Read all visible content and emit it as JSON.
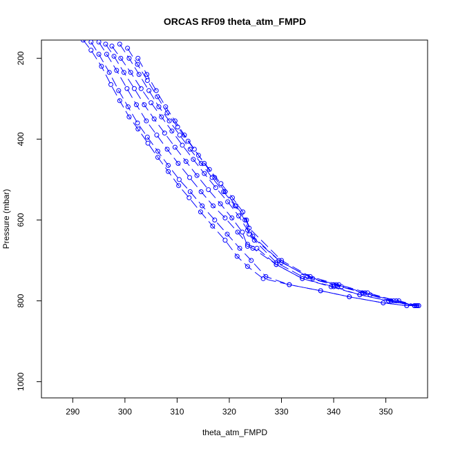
{
  "chart_data": {
    "type": "line",
    "title": "ORCAS RF09 theta_atm_FMPD",
    "xlabel": "theta_atm_FMPD",
    "ylabel": "Pressure (mbar)",
    "xlim": [
      284,
      358
    ],
    "ylim": [
      1040,
      155
    ],
    "y_reversed": true,
    "x_ticks": [
      290,
      300,
      310,
      320,
      330,
      340,
      350
    ],
    "y_ticks": [
      200,
      400,
      600,
      800,
      1000
    ],
    "x_tick_labels": [
      "290",
      "300",
      "310",
      "320",
      "330",
      "340",
      "350"
    ],
    "y_tick_labels": [
      "200",
      "400",
      "600",
      "800",
      "1000"
    ],
    "grid": false,
    "color": "#0000ff",
    "line_style": "dashed with circle markers",
    "series": [
      {
        "x": [
          292,
          293.5,
          295.5,
          297.3,
          299,
          300.8,
          302.5,
          304.4,
          306.3,
          308.3,
          310.3,
          312.3,
          314.5,
          316.8,
          319.2,
          321.5,
          323.5,
          326.5,
          331.5,
          337.5,
          343,
          349.5,
          354,
          355.5,
          356.3
        ],
        "y": [
          155,
          180,
          220,
          265,
          305,
          345,
          375,
          410,
          445,
          480,
          515,
          545,
          580,
          615,
          650,
          690,
          715,
          745,
          760,
          775,
          790,
          805,
          812,
          812,
          812
        ]
      },
      {
        "x": [
          293.5,
          295,
          297,
          298.8,
          300.6,
          302.4,
          304.3,
          306.3,
          308.3,
          310.4,
          312.5,
          314.8,
          317.2,
          319.6,
          322,
          324.2,
          327,
          331.5,
          337.5,
          343,
          349.5,
          354,
          356
        ],
        "y": [
          160,
          190,
          235,
          280,
          320,
          360,
          395,
          430,
          465,
          500,
          530,
          565,
          600,
          635,
          670,
          700,
          740,
          760,
          775,
          790,
          805,
          812,
          812
        ]
      },
      {
        "x": [
          295,
          296.5,
          298.4,
          300.4,
          302.2,
          304.1,
          306.1,
          308.1,
          310.2,
          312.4,
          314.6,
          316.9,
          319.2,
          321.6,
          323.5,
          325.3,
          329,
          334,
          339.5,
          345,
          350.5,
          355.5
        ],
        "y": [
          160,
          190,
          230,
          275,
          315,
          355,
          390,
          425,
          460,
          495,
          530,
          565,
          595,
          630,
          660,
          670,
          710,
          745,
          765,
          785,
          800,
          812
        ]
      },
      {
        "x": [
          296.3,
          297.9,
          299.8,
          301.8,
          303.7,
          305.6,
          307.6,
          309.6,
          311.7,
          313.8,
          316,
          318.3,
          320.5,
          322.5,
          323.5,
          324.5,
          329,
          334,
          340,
          345,
          350.5,
          355.5
        ],
        "y": [
          165,
          195,
          235,
          275,
          315,
          350,
          385,
          420,
          455,
          490,
          525,
          560,
          595,
          630,
          665,
          670,
          710,
          745,
          765,
          785,
          800,
          812
        ]
      },
      {
        "x": [
          297.5,
          299.2,
          301.1,
          303.1,
          305,
          307,
          309,
          311,
          313.1,
          315.2,
          317.4,
          319.7,
          321.8,
          323.5,
          324.8,
          329,
          334,
          340,
          345.5,
          351,
          355.5
        ],
        "y": [
          170,
          200,
          235,
          275,
          310,
          345,
          380,
          415,
          450,
          485,
          520,
          555,
          590,
          625,
          650,
          705,
          740,
          760,
          780,
          800,
          812
        ]
      },
      {
        "x": [
          299,
          300.8,
          302.7,
          304.6,
          306.5,
          308.5,
          310.5,
          312.5,
          314.6,
          316.7,
          318.9,
          321.1,
          323,
          323.8,
          329.5,
          335,
          340.5,
          346,
          351.5,
          355.8
        ],
        "y": [
          165,
          200,
          240,
          280,
          320,
          355,
          390,
          425,
          460,
          495,
          530,
          565,
          600,
          635,
          700,
          740,
          760,
          780,
          800,
          812
        ]
      },
      {
        "x": [
          300.5,
          302.4,
          304.3,
          306.2,
          308.1,
          310.1,
          312.1,
          314.1,
          316.2,
          318.4,
          320.6,
          322.6,
          323.8,
          330,
          335.5,
          341,
          346.5,
          352,
          356
        ],
        "y": [
          175,
          215,
          255,
          295,
          335,
          370,
          405,
          440,
          475,
          510,
          545,
          580,
          620,
          700,
          740,
          760,
          780,
          800,
          812
        ]
      },
      {
        "x": [
          302.5,
          304.2,
          306,
          307.8,
          309.6,
          311.4,
          313.3,
          315.2,
          317.2,
          319.2,
          321.3,
          323.3,
          324.5,
          330,
          336,
          341.5,
          347,
          352.5,
          356.3
        ],
        "y": [
          200,
          240,
          280,
          320,
          355,
          390,
          425,
          460,
          495,
          530,
          565,
          600,
          640,
          705,
          745,
          765,
          785,
          800,
          812
        ]
      }
    ]
  }
}
